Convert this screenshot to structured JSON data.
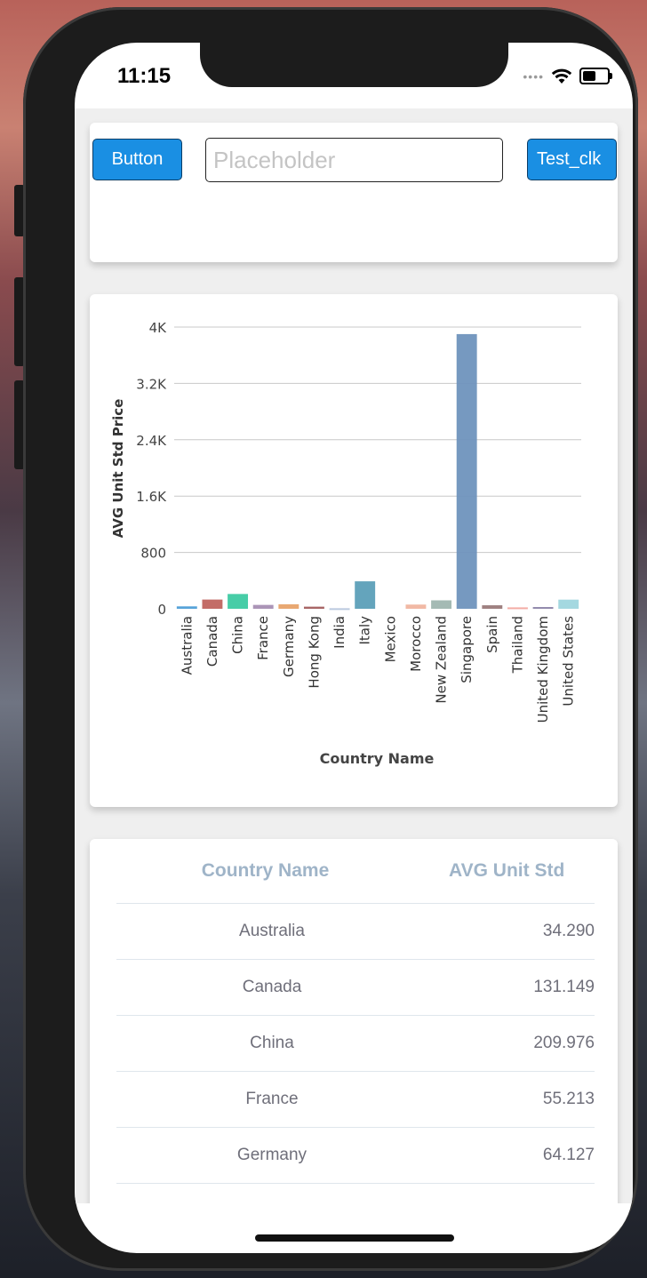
{
  "status_bar": {
    "time": "11:15"
  },
  "top_card": {
    "button_label": "Button",
    "input_placeholder": "Placeholder",
    "input_value": "",
    "test_button_label": "Test_clk"
  },
  "chart_data": {
    "type": "bar",
    "xlabel": "Country Name",
    "ylabel": "AVG Unit Std Price",
    "ylim": [
      0,
      4000
    ],
    "yticks": [
      0,
      800,
      1600,
      2400,
      3200,
      4000
    ],
    "ytick_labels": [
      "0",
      "800",
      "1.6K",
      "2.4K",
      "3.2K",
      "4K"
    ],
    "grid": true,
    "categories": [
      "Australia",
      "Canada",
      "China",
      "France",
      "Germany",
      "Hong Kong",
      "India",
      "Italy",
      "Mexico",
      "Morocco",
      "New Zealand",
      "Singapore",
      "Spain",
      "Thailand",
      "United Kingdom",
      "United States"
    ],
    "values": [
      34.29,
      131.149,
      209.976,
      55.213,
      64.127,
      30,
      8,
      390,
      0,
      60,
      120,
      3900,
      50,
      20,
      25,
      130
    ],
    "colors": [
      "#4e9ed7",
      "#c0645f",
      "#3dcaa2",
      "#a78fb3",
      "#e8a36a",
      "#a35e5e",
      "#b6c6dd",
      "#5c9fb8",
      "#cfcfcf",
      "#f0b5a0",
      "#9fb6b0",
      "#6f93bd",
      "#9a7a7a",
      "#f2a8a0",
      "#8c84a8",
      "#9fd6de"
    ]
  },
  "table": {
    "headers": [
      "Country Name",
      "AVG Unit Std"
    ],
    "rows": [
      {
        "country": "Australia",
        "value": "34.290"
      },
      {
        "country": "Canada",
        "value": "131.149"
      },
      {
        "country": "China",
        "value": "209.976"
      },
      {
        "country": "France",
        "value": "55.213"
      },
      {
        "country": "Germany",
        "value": "64.127"
      }
    ]
  }
}
